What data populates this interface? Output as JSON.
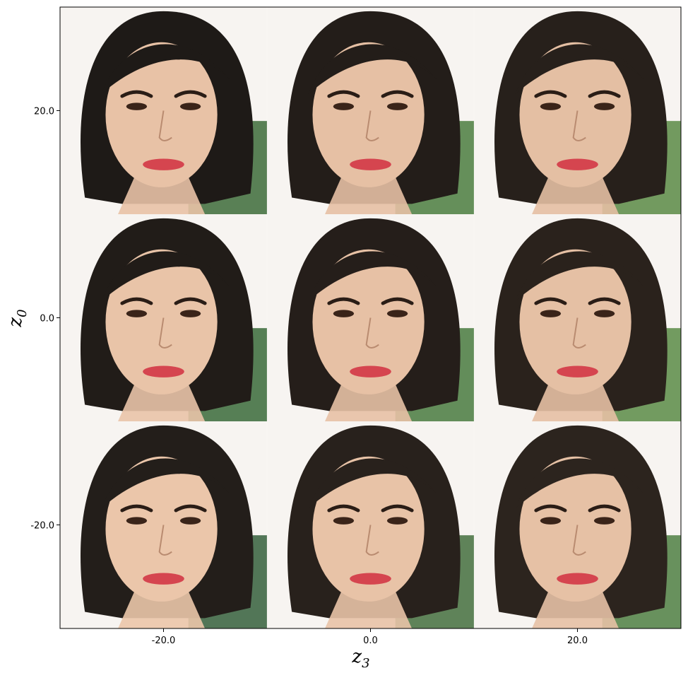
{
  "chart_data": {
    "type": "image-grid",
    "xlabel": "z",
    "xlabel_sub": "3",
    "ylabel": "z",
    "ylabel_sub": "0",
    "x_ticks": [
      "-20.0",
      "0.0",
      "20.0"
    ],
    "y_ticks": [
      "20.0",
      "0.0",
      "-20.0"
    ],
    "rows": 3,
    "cols": 3,
    "cells": [
      {
        "z0": 20.0,
        "z3": -20.0,
        "hair": "#1e1a17",
        "skin": "#e8c2a6",
        "bg": "#3d6b3a"
      },
      {
        "z0": 20.0,
        "z3": 0.0,
        "hair": "#231d19",
        "skin": "#e6c0a4",
        "bg": "#4b7c40"
      },
      {
        "z0": 20.0,
        "z3": 20.0,
        "hair": "#27201b",
        "skin": "#e4bfa3",
        "bg": "#5a8a45"
      },
      {
        "z0": 0.0,
        "z3": -20.0,
        "hair": "#211c18",
        "skin": "#e9c4a8",
        "bg": "#3a6a3a"
      },
      {
        "z0": 0.0,
        "z3": 0.0,
        "hair": "#251e1a",
        "skin": "#e7c1a5",
        "bg": "#497a3f"
      },
      {
        "z0": 0.0,
        "z3": 20.0,
        "hair": "#2a221c",
        "skin": "#e5c0a4",
        "bg": "#5b8b46"
      },
      {
        "z0": -20.0,
        "z3": -20.0,
        "hair": "#231e1a",
        "skin": "#ebc6aa",
        "bg": "#355f3c"
      },
      {
        "z0": -20.0,
        "z3": 0.0,
        "hair": "#28211c",
        "skin": "#e8c3a7",
        "bg": "#446f3e"
      },
      {
        "z0": -20.0,
        "z3": 20.0,
        "hair": "#2c241e",
        "skin": "#e6c1a5",
        "bg": "#4f7f43"
      }
    ],
    "colors": {
      "lips": "#d5454f",
      "eyes": "#3a2419",
      "brows": "#2a1d16",
      "frame": "#000000"
    }
  }
}
